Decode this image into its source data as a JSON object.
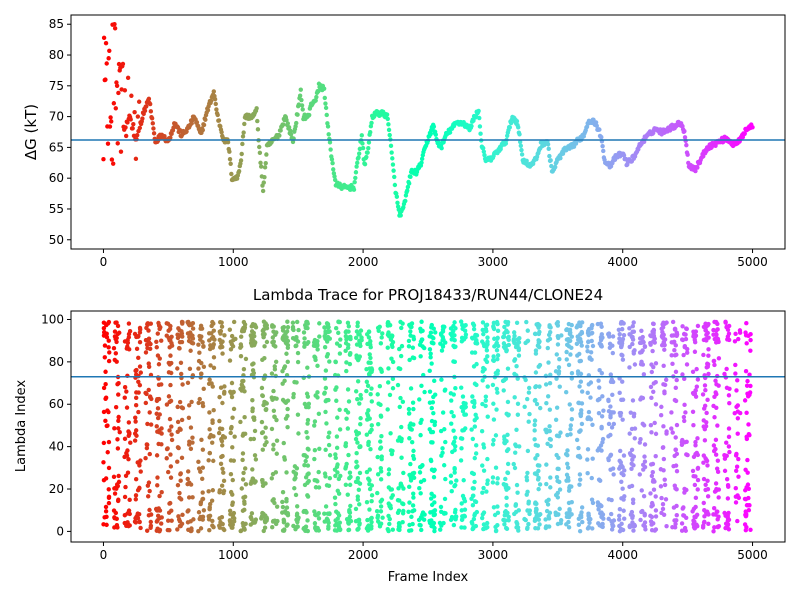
{
  "chart_data": [
    {
      "type": "scatter",
      "title": "",
      "xlabel": "",
      "ylabel": "ΔG (kT)",
      "xlim": [
        -250,
        5250
      ],
      "ylim": [
        48.5,
        86.5
      ],
      "xticks": [
        0,
        1000,
        2000,
        3000,
        4000,
        5000
      ],
      "yticks": [
        50,
        55,
        60,
        65,
        70,
        75,
        80,
        85
      ],
      "hline": 66.2,
      "hline_color": "#1f77b4",
      "colormap": "rainbow (red at frame 0 to violet at frame 5000)",
      "trace": [
        [
          0,
          80
        ],
        [
          40,
          65
        ],
        [
          80,
          78
        ],
        [
          120,
          73
        ],
        [
          160,
          68
        ],
        [
          200,
          70
        ],
        [
          250,
          66
        ],
        [
          300,
          70
        ],
        [
          350,
          73
        ],
        [
          400,
          66
        ],
        [
          450,
          67
        ],
        [
          500,
          66
        ],
        [
          550,
          69
        ],
        [
          600,
          67
        ],
        [
          650,
          68
        ],
        [
          700,
          70
        ],
        [
          750,
          67
        ],
        [
          800,
          71
        ],
        [
          850,
          74
        ],
        [
          880,
          70
        ],
        [
          930,
          66
        ],
        [
          960,
          66
        ],
        [
          990,
          60
        ],
        [
          1030,
          60
        ],
        [
          1060,
          63
        ],
        [
          1090,
          70
        ],
        [
          1150,
          70
        ],
        [
          1180,
          71
        ],
        [
          1200,
          65
        ],
        [
          1230,
          58
        ],
        [
          1260,
          65
        ],
        [
          1300,
          66
        ],
        [
          1350,
          67
        ],
        [
          1400,
          70
        ],
        [
          1430,
          68
        ],
        [
          1460,
          66
        ],
        [
          1490,
          70
        ],
        [
          1520,
          74
        ],
        [
          1540,
          70
        ],
        [
          1580,
          70
        ],
        [
          1600,
          72
        ],
        [
          1640,
          73
        ],
        [
          1660,
          75
        ],
        [
          1700,
          74.5
        ],
        [
          1730,
          68
        ],
        [
          1760,
          63
        ],
        [
          1790,
          59
        ],
        [
          1850,
          58.5
        ],
        [
          1930,
          58.5
        ],
        [
          1960,
          63
        ],
        [
          1990,
          67
        ],
        [
          2010,
          62
        ],
        [
          2040,
          65
        ],
        [
          2070,
          70
        ],
        [
          2100,
          70.5
        ],
        [
          2150,
          70.5
        ],
        [
          2190,
          70
        ],
        [
          2220,
          64
        ],
        [
          2250,
          58
        ],
        [
          2280,
          54
        ],
        [
          2310,
          55
        ],
        [
          2340,
          58
        ],
        [
          2370,
          61
        ],
        [
          2410,
          61
        ],
        [
          2440,
          62
        ],
        [
          2480,
          65
        ],
        [
          2510,
          67
        ],
        [
          2540,
          68.5
        ],
        [
          2570,
          66
        ],
        [
          2600,
          65
        ],
        [
          2640,
          67
        ],
        [
          2680,
          68
        ],
        [
          2720,
          69
        ],
        [
          2770,
          69
        ],
        [
          2820,
          68
        ],
        [
          2860,
          70
        ],
        [
          2890,
          71
        ],
        [
          2910,
          66
        ],
        [
          2940,
          63
        ],
        [
          2980,
          63
        ],
        [
          3020,
          64
        ],
        [
          3060,
          65
        ],
        [
          3100,
          66
        ],
        [
          3150,
          70
        ],
        [
          3190,
          69
        ],
        [
          3230,
          63
        ],
        [
          3290,
          62
        ],
        [
          3330,
          63
        ],
        [
          3370,
          65.5
        ],
        [
          3420,
          66
        ],
        [
          3440,
          63
        ],
        [
          3460,
          61
        ],
        [
          3500,
          63
        ],
        [
          3550,
          64.5
        ],
        [
          3600,
          65
        ],
        [
          3650,
          66
        ],
        [
          3700,
          67
        ],
        [
          3740,
          69.5
        ],
        [
          3790,
          69
        ],
        [
          3830,
          67
        ],
        [
          3860,
          63
        ],
        [
          3900,
          62
        ],
        [
          3950,
          63.5
        ],
        [
          4000,
          64
        ],
        [
          4030,
          62.5
        ],
        [
          4070,
          63
        ],
        [
          4100,
          64
        ],
        [
          4150,
          66
        ],
        [
          4200,
          67
        ],
        [
          4250,
          68
        ],
        [
          4300,
          67.5
        ],
        [
          4350,
          68
        ],
        [
          4400,
          68.5
        ],
        [
          4450,
          69
        ],
        [
          4480,
          67
        ],
        [
          4510,
          62
        ],
        [
          4560,
          61.5
        ],
        [
          4600,
          63
        ],
        [
          4650,
          65
        ],
        [
          4700,
          65.5
        ],
        [
          4750,
          66
        ],
        [
          4800,
          66.5
        ],
        [
          4850,
          65.5
        ],
        [
          4900,
          66
        ],
        [
          4950,
          68
        ],
        [
          5000,
          68.5
        ]
      ],
      "early_scatter_frames": [
        0,
        400
      ],
      "early_scatter_range": [
        50,
        85
      ]
    },
    {
      "type": "scatter",
      "title": "Lambda Trace for PROJ18433/RUN44/CLONE24",
      "xlabel": "Frame Index",
      "ylabel": "Lambda Index",
      "xlim": [
        -250,
        5250
      ],
      "ylim": [
        -5,
        104
      ],
      "xticks": [
        0,
        1000,
        2000,
        3000,
        4000,
        5000
      ],
      "yticks": [
        0,
        20,
        40,
        60,
        80,
        100
      ],
      "hline": 73,
      "hline_color": "#1f77b4",
      "colormap": "rainbow (red at frame 0 to violet at frame 5000)",
      "point_count": 3000,
      "value_range": [
        0,
        99
      ]
    }
  ]
}
